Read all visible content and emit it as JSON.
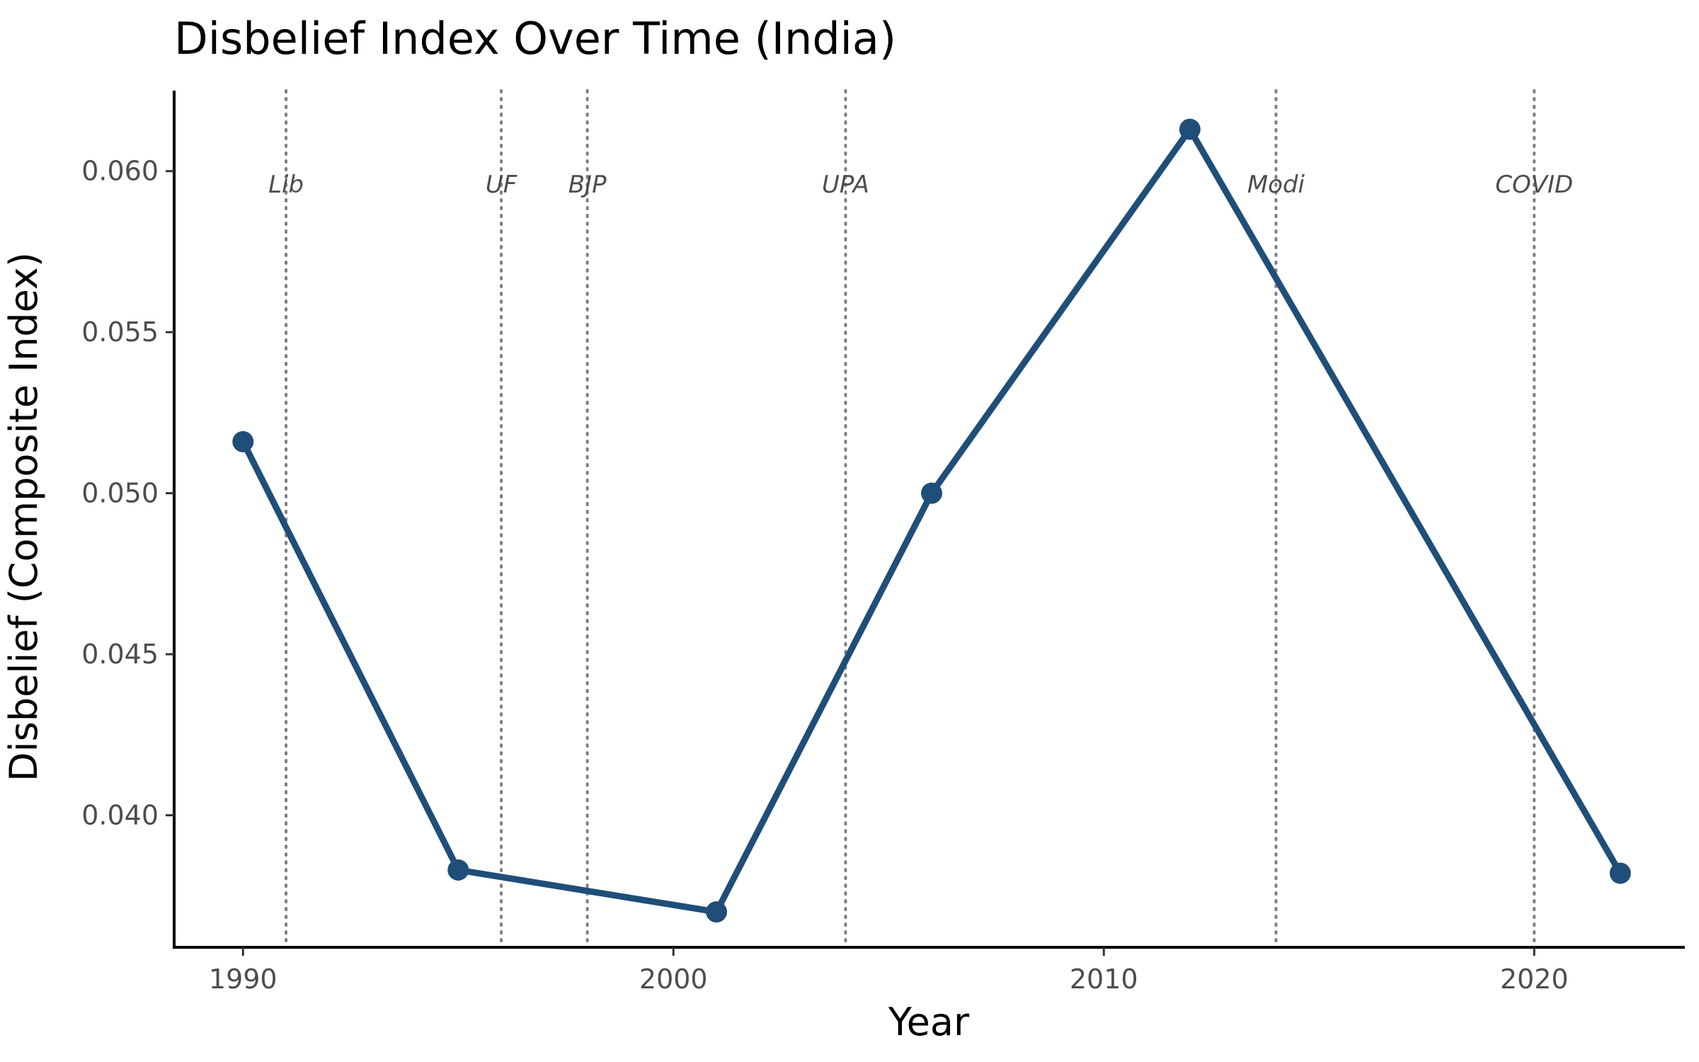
{
  "chart_data": {
    "type": "line",
    "title": "Disbelief Index Over Time (India)",
    "xlabel": "Year",
    "ylabel": "Disbelief (Composite Index)",
    "x": [
      1990,
      1995,
      2001,
      2006,
      2012,
      2022
    ],
    "series": [
      {
        "values": [
          0.0516,
          0.0383,
          0.037,
          0.05,
          0.0613,
          0.0382
        ],
        "color": "#1f4e79"
      }
    ],
    "xlim": [
      1988.4,
      2023.5
    ],
    "ylim": [
      0.0359,
      0.0625
    ],
    "xticks": [
      1990,
      2000,
      2010,
      2020
    ],
    "xtick_labels": [
      "1990",
      "2000",
      "2010",
      "2020"
    ],
    "yticks": [
      0.04,
      0.045,
      0.05,
      0.055,
      0.06
    ],
    "ytick_labels": [
      "0.040",
      "0.045",
      "0.050",
      "0.055",
      "0.060"
    ],
    "events": [
      {
        "year": 1991,
        "label": "Lib"
      },
      {
        "year": 1996,
        "label": "UF"
      },
      {
        "year": 1998,
        "label": "BJP"
      },
      {
        "year": 2004,
        "label": "UPA"
      },
      {
        "year": 2014,
        "label": "Modi"
      },
      {
        "year": 2020,
        "label": "COVID"
      }
    ],
    "event_label_value": 0.0596,
    "grid": false,
    "legend": "none"
  }
}
